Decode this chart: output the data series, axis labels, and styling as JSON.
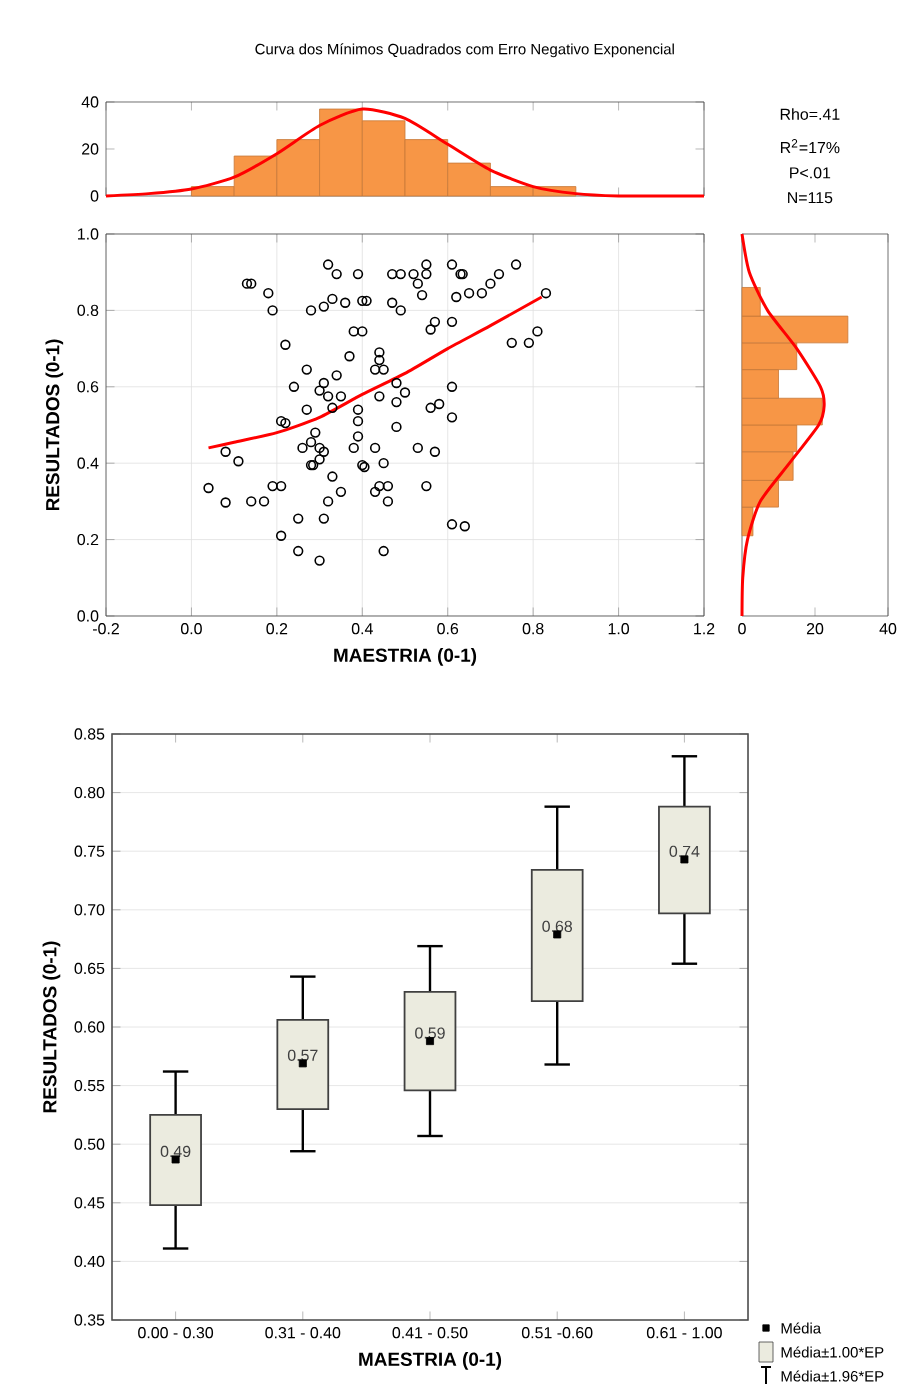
{
  "chart_data": [
    {
      "type": "histogram",
      "title": "Curva dos Mínimos Quadrados com Erro Negativo Exponencial",
      "bins": [
        0.0,
        0.1,
        0.2,
        0.3,
        0.4,
        0.5,
        0.6,
        0.7,
        0.8,
        0.9
      ],
      "values": [
        4,
        17,
        24,
        37,
        32,
        24,
        14,
        4,
        4
      ],
      "color": "#f79646",
      "xlim": [
        -0.2,
        1.2
      ],
      "xticks": [
        -0.2,
        0,
        0.2,
        0.4,
        0.6,
        0.8,
        1.0,
        1.2
      ],
      "ylim": [
        0,
        40
      ],
      "yticks": [
        0,
        20,
        40
      ],
      "tick_labels": "y",
      "series": [
        {
          "type": "line",
          "color": "#ff0000",
          "x": [
            -0.2,
            -0.1,
            0.0,
            0.1,
            0.2,
            0.3,
            0.4,
            0.5,
            0.6,
            0.7,
            0.8,
            0.9,
            1.0,
            1.1,
            1.2
          ],
          "values": [
            0,
            1,
            3,
            8,
            18,
            30,
            37,
            33,
            22,
            11,
            4,
            1,
            0,
            0,
            0
          ]
        }
      ]
    },
    {
      "type": "scatter",
      "xlabel": "MAESTRIA (0-1)",
      "ylabel": "RESULTADOS (0-1)",
      "xlim": [
        -0.2,
        1.2
      ],
      "xticks": [
        {
          "value": -0.2,
          "label": "-0.2"
        },
        {
          "value": 0,
          "label": "0.0"
        },
        {
          "value": 0.2,
          "label": "0.2"
        },
        {
          "value": 0.4,
          "label": "0.4"
        },
        {
          "value": 0.6,
          "label": "0.6"
        },
        {
          "value": 0.8,
          "label": "0.8"
        },
        {
          "value": 1.0,
          "label": "1.0"
        },
        {
          "value": 1.2,
          "label": "1.2"
        }
      ],
      "ylim": [
        0,
        1
      ],
      "yticks": [
        {
          "value": 0,
          "label": "0.0"
        },
        {
          "value": 0.2,
          "label": "0.2"
        },
        {
          "value": 0.4,
          "label": "0.4"
        },
        {
          "value": 0.6,
          "label": "0.6"
        },
        {
          "value": 0.8,
          "label": "0.8"
        },
        {
          "value": 1.0,
          "label": "1.0"
        }
      ],
      "grid": true,
      "annotations": [
        "Rho=.41",
        "R$^{2}$=17%",
        "P<.01",
        "N=115"
      ],
      "series": [
        {
          "type": "scatter",
          "color": "#000000",
          "marker": "circle",
          "x": [
            0.04,
            0.08,
            0.08,
            0.11,
            0.13,
            0.14,
            0.18,
            0.19,
            0.14,
            0.17,
            0.19,
            0.21,
            0.21,
            0.22,
            0.21,
            0.22,
            0.24,
            0.25,
            0.25,
            0.27,
            0.27,
            0.26,
            0.28,
            0.285,
            0.28,
            0.28,
            0.29,
            0.3,
            0.3,
            0.31,
            0.32,
            0.33,
            0.31,
            0.3,
            0.31,
            0.32,
            0.33,
            0.32,
            0.31,
            0.3,
            0.33,
            0.34,
            0.34,
            0.35,
            0.36,
            0.35,
            0.37,
            0.38,
            0.39,
            0.39,
            0.39,
            0.38,
            0.39,
            0.4,
            0.41,
            0.4,
            0.4,
            0.405,
            0.43,
            0.44,
            0.44,
            0.43,
            0.45,
            0.44,
            0.43,
            0.44,
            0.46,
            0.45,
            0.46,
            0.45,
            0.47,
            0.49,
            0.47,
            0.49,
            0.48,
            0.48,
            0.5,
            0.48,
            0.52,
            0.53,
            0.54,
            0.55,
            0.55,
            0.53,
            0.56,
            0.57,
            0.56,
            0.58,
            0.57,
            0.55,
            0.61,
            0.61,
            0.63,
            0.635,
            0.62,
            0.61,
            0.61,
            0.61,
            0.64,
            0.65,
            0.68,
            0.7,
            0.72,
            0.76,
            0.75,
            0.79,
            0.81,
            0.83
          ],
          "values": [
            0.335,
            0.297,
            0.43,
            0.405,
            0.87,
            0.87,
            0.845,
            0.8,
            0.3,
            0.3,
            0.34,
            0.34,
            0.21,
            0.71,
            0.51,
            0.505,
            0.6,
            0.255,
            0.17,
            0.645,
            0.54,
            0.44,
            0.395,
            0.395,
            0.8,
            0.455,
            0.48,
            0.44,
            0.41,
            0.43,
            0.92,
            0.83,
            0.81,
            0.59,
            0.61,
            0.575,
            0.545,
            0.3,
            0.255,
            0.145,
            0.365,
            0.895,
            0.63,
            0.575,
            0.82,
            0.325,
            0.68,
            0.745,
            0.51,
            0.54,
            0.47,
            0.44,
            0.895,
            0.825,
            0.825,
            0.745,
            0.395,
            0.39,
            0.325,
            0.69,
            0.67,
            0.645,
            0.645,
            0.575,
            0.44,
            0.34,
            0.34,
            0.4,
            0.3,
            0.17,
            0.895,
            0.895,
            0.82,
            0.8,
            0.61,
            0.56,
            0.585,
            0.495,
            0.895,
            0.87,
            0.84,
            0.92,
            0.895,
            0.44,
            0.75,
            0.77,
            0.545,
            0.555,
            0.43,
            0.34,
            0.77,
            0.92,
            0.895,
            0.895,
            0.835,
            0.6,
            0.52,
            0.24,
            0.235,
            0.845,
            0.845,
            0.87,
            0.895,
            0.92,
            0.715,
            0.715,
            0.745,
            0.845
          ]
        },
        {
          "type": "line",
          "color": "#ff0000",
          "x": [
            0.04,
            0.1,
            0.2,
            0.3,
            0.4,
            0.5,
            0.6,
            0.7,
            0.82
          ],
          "values": [
            0.44,
            0.455,
            0.48,
            0.52,
            0.58,
            0.635,
            0.7,
            0.76,
            0.835
          ]
        }
      ]
    },
    {
      "type": "histogram",
      "orientation": "horizontal",
      "bins": [
        0.21,
        0.285,
        0.355,
        0.43,
        0.5,
        0.57,
        0.645,
        0.715,
        0.785,
        0.86
      ],
      "values": [
        3,
        10,
        14,
        15,
        22,
        10,
        15,
        29,
        5
      ],
      "color": "#f79646",
      "xlim": [
        0,
        40
      ],
      "xticks": [
        0,
        20,
        40
      ],
      "ylim": [
        0,
        1
      ],
      "tick_labels": "x",
      "series": [
        {
          "type": "line",
          "color": "#ff0000",
          "x": [
            0.0,
            0.1,
            0.2,
            0.3,
            0.4,
            0.5,
            0.55,
            0.6,
            0.7,
            0.8,
            0.9,
            1.0
          ],
          "values": [
            0,
            0.2,
            1.5,
            5,
            13,
            21,
            22.5,
            21.5,
            15,
            7,
            2,
            0
          ]
        }
      ]
    },
    {
      "type": "box",
      "xlabel": "MAESTRIA (0-1)",
      "ylabel": "RESULTADOS (0-1)",
      "categories": [
        "0.00 - 0.30",
        "0.31 - 0.40",
        "0.41 - 0.50",
        "0.51 -0.60",
        "0.61 - 1.00"
      ],
      "color": "#ebebdf",
      "boxes": [
        {
          "low": 0.411,
          "q1": 0.448,
          "median": 0.487,
          "q3": 0.525,
          "high": 0.562
        },
        {
          "low": 0.494,
          "q1": 0.53,
          "median": 0.569,
          "q3": 0.606,
          "high": 0.643
        },
        {
          "low": 0.507,
          "q1": 0.546,
          "median": 0.588,
          "q3": 0.63,
          "high": 0.669
        },
        {
          "low": 0.568,
          "q1": 0.622,
          "median": 0.679,
          "q3": 0.734,
          "high": 0.788
        },
        {
          "low": 0.654,
          "q1": 0.697,
          "median": 0.743,
          "q3": 0.788,
          "high": 0.831
        }
      ],
      "value_labels": [
        "0.49",
        "0.57",
        "0.59",
        "0.68",
        "0.74"
      ],
      "ylim": [
        0.35,
        0.85
      ],
      "yticks": [
        {
          "value": 0.35,
          "label": "0.35"
        },
        {
          "value": 0.4,
          "label": "0.40"
        },
        {
          "value": 0.45,
          "label": "0.45"
        },
        {
          "value": 0.5,
          "label": "0.50"
        },
        {
          "value": 0.55,
          "label": "0.55"
        },
        {
          "value": 0.6,
          "label": "0.60"
        },
        {
          "value": 0.65,
          "label": "0.65"
        },
        {
          "value": 0.7,
          "label": "0.70"
        },
        {
          "value": 0.75,
          "label": "0.75"
        },
        {
          "value": 0.8,
          "label": "0.80"
        },
        {
          "value": 0.85,
          "label": "0.85"
        }
      ],
      "grid": "y",
      "annotations": [
        "Média",
        "Média±1.00*EP",
        "Média±1.96*EP"
      ]
    }
  ]
}
